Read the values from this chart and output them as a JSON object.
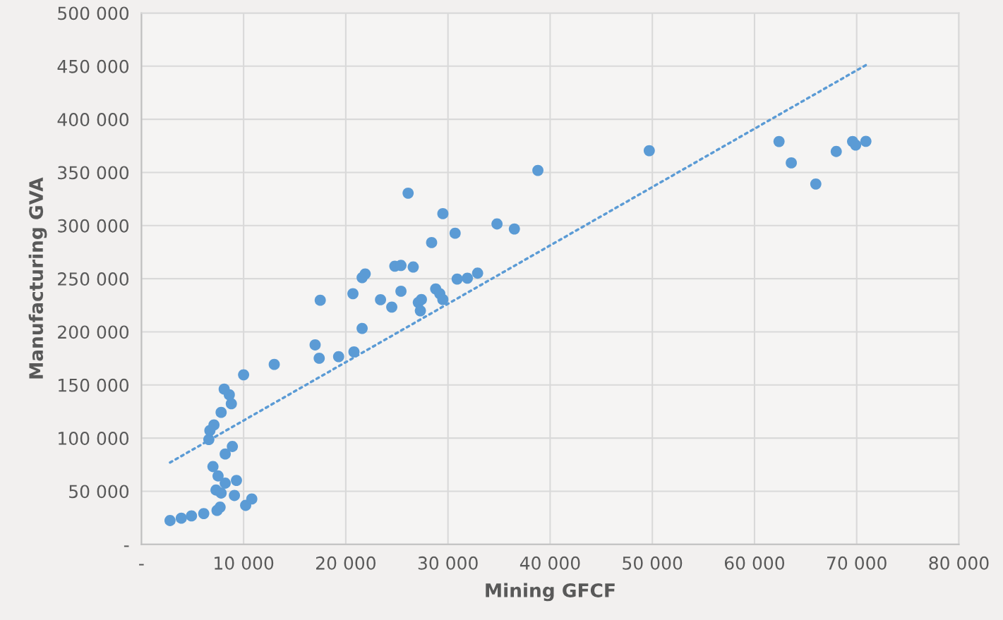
{
  "chart_data": {
    "type": "scatter",
    "xlabel": "Mining GFCF",
    "ylabel": "Manufacturing GVA",
    "xlim": [
      0,
      80000
    ],
    "ylim": [
      0,
      500000
    ],
    "xticks": [
      {
        "value": 0,
        "label": "-"
      },
      {
        "value": 10000,
        "label": "10 000"
      },
      {
        "value": 20000,
        "label": "20 000"
      },
      {
        "value": 30000,
        "label": "30 000"
      },
      {
        "value": 40000,
        "label": "40 000"
      },
      {
        "value": 50000,
        "label": "50 000"
      },
      {
        "value": 60000,
        "label": "60 000"
      },
      {
        "value": 70000,
        "label": "70 000"
      },
      {
        "value": 80000,
        "label": "80 000"
      }
    ],
    "yticks": [
      {
        "value": 0,
        "label": "-"
      },
      {
        "value": 50000,
        "label": "50 000"
      },
      {
        "value": 100000,
        "label": "100 000"
      },
      {
        "value": 150000,
        "label": "150 000"
      },
      {
        "value": 200000,
        "label": "200 000"
      },
      {
        "value": 250000,
        "label": "250 000"
      },
      {
        "value": 300000,
        "label": "300 000"
      },
      {
        "value": 350000,
        "label": "350 000"
      },
      {
        "value": 400000,
        "label": "400 000"
      },
      {
        "value": 450000,
        "label": "450 000"
      },
      {
        "value": 500000,
        "label": "500 000"
      }
    ],
    "grid": true,
    "series": [
      {
        "color": "#5b9bd5",
        "marker": "circle",
        "x": [
          2800,
          3900,
          4900,
          6100,
          7400,
          7700,
          10200,
          10800,
          9100,
          7300,
          7800,
          8200,
          9300,
          7500,
          7000,
          8200,
          8900,
          6600,
          6700,
          7100,
          7800,
          8800,
          8600,
          8100,
          10000,
          13000,
          17000,
          17400,
          19300,
          20800,
          21600,
          17500,
          20700,
          23400,
          24500,
          25400,
          27100,
          27400,
          27300,
          28800,
          29200,
          29500,
          30900,
          31900,
          32900,
          21600,
          21900,
          24800,
          25400,
          26600,
          28400,
          30700,
          29500,
          26100,
          34800,
          36500,
          38800,
          49700,
          62400,
          63600,
          66000,
          68000,
          69600,
          69900,
          70900
        ],
        "values": [
          22400,
          24600,
          26800,
          29000,
          31900,
          35000,
          36700,
          42700,
          46000,
          51100,
          48300,
          57600,
          60200,
          64400,
          73200,
          85000,
          92100,
          98700,
          107100,
          112400,
          124200,
          132300,
          140800,
          146100,
          159600,
          169300,
          187700,
          175100,
          176600,
          181100,
          203200,
          229700,
          235900,
          230200,
          223300,
          238200,
          227600,
          230400,
          219800,
          240400,
          235900,
          230400,
          249700,
          250500,
          255200,
          251000,
          254500,
          261800,
          262500,
          261000,
          284000,
          292800,
          311200,
          330500,
          301500,
          296800,
          351900,
          370500,
          379100,
          359000,
          339100,
          369700,
          379100,
          375800,
          379300
        ]
      },
      {
        "type": "line",
        "color": "#5b9bd5",
        "line_style": "dotted",
        "x": [
          2800,
          70900
        ],
        "values": [
          77000,
          451000
        ]
      }
    ]
  }
}
